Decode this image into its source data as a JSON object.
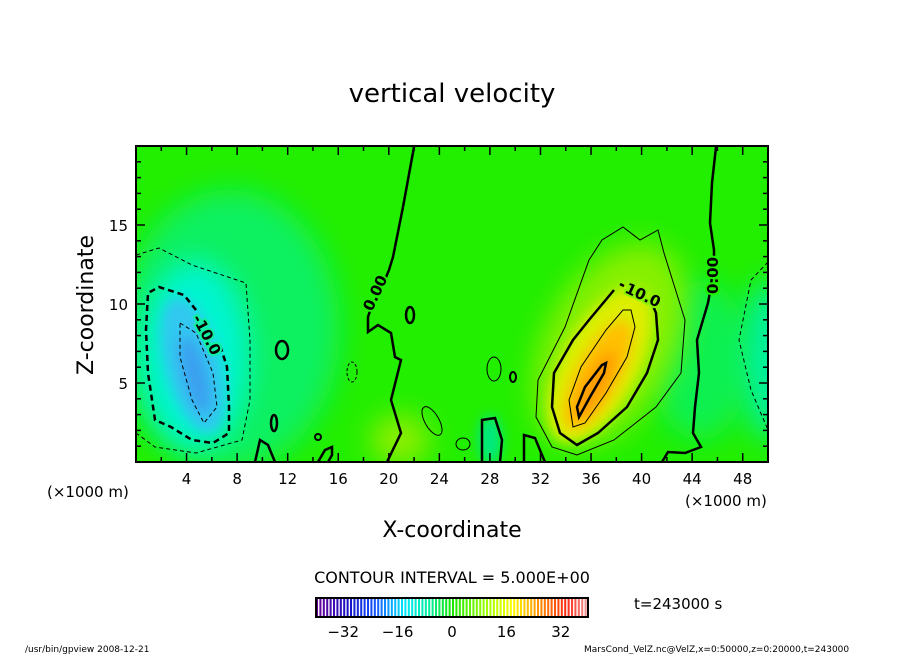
{
  "chart_data": {
    "type": "contour",
    "title": "vertical velocity",
    "xlabel": "X-coordinate",
    "ylabel": "Z-coordinate",
    "x_units": "(×1000 m)",
    "y_units": "(×1000 m)",
    "xlim": [
      0,
      50
    ],
    "ylim": [
      0,
      20
    ],
    "xticks": [
      4,
      8,
      12,
      16,
      20,
      24,
      28,
      32,
      36,
      40,
      44,
      48
    ],
    "yticks": [
      5,
      10,
      15
    ],
    "contour_interval_label": "CONTOUR INTERVAL = 5.000E+00",
    "contour_labels": [
      "0.00",
      "-10.0",
      "10.0",
      "0.00"
    ],
    "features": [
      {
        "kind": "downdraft minimum",
        "x": 5,
        "z": 7,
        "value": -22
      },
      {
        "kind": "updraft maximum",
        "x": 36,
        "z": 5,
        "value": 25
      }
    ],
    "colorbar": {
      "min": -40,
      "max": 40,
      "ticks": [
        -32,
        -16,
        0,
        16,
        32
      ]
    },
    "time_label": "t=243000 s",
    "grid": false
  },
  "footer": {
    "left": "/usr/bin/gpview   2008-12-21",
    "right": "MarsCond_VelZ.nc@VelZ,x=0:50000,z=0:20000,t=243000"
  }
}
